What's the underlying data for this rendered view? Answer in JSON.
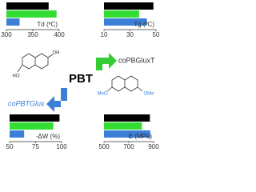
{
  "chart_data": [
    {
      "type": "bar",
      "horizontal": true,
      "xlabel": "Td (ºC)",
      "values": [
        380,
        395,
        325
      ],
      "colors": [
        "#000000",
        "#33dd33",
        "#3b7fd6"
      ],
      "xlim": [
        300,
        400
      ],
      "xticks": [
        300,
        350,
        400
      ]
    },
    {
      "type": "bar",
      "horizontal": true,
      "xlabel": "Tg (ºC)",
      "values": [
        48,
        37,
        43
      ],
      "colors": [
        "#000000",
        "#33dd33",
        "#3b7fd6"
      ],
      "xlim": [
        10,
        50
      ],
      "xticks": [
        10,
        30,
        50
      ]
    },
    {
      "type": "bar",
      "horizontal": true,
      "xlabel": "-ΔW (%)",
      "values": [
        98,
        92,
        64
      ],
      "colors": [
        "#000000",
        "#33dd33",
        "#3b7fd6"
      ],
      "xlim": [
        50,
        100
      ],
      "xticks": [
        50,
        75,
        100
      ]
    },
    {
      "type": "bar",
      "horizontal": true,
      "xlabel": "E (MPa)",
      "values": [
        870,
        806,
        873
      ],
      "colors": [
        "#000000",
        "#33dd33",
        "#3b7fd6"
      ],
      "xlim": [
        500,
        900
      ],
      "xticks": [
        500,
        700,
        900
      ]
    }
  ],
  "labels": {
    "center": "PBT",
    "upper": "coPBGluxT",
    "lower": "coPBTGlux"
  },
  "molecules": {
    "diol": [
      "HO",
      "OH"
    ],
    "ester": [
      "MeO",
      "OMe"
    ]
  }
}
